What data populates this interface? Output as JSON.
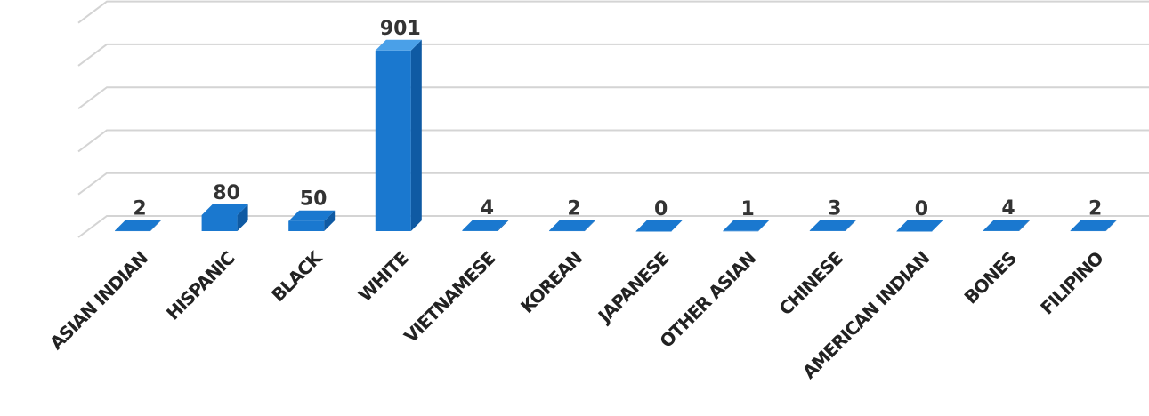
{
  "chart_data": {
    "type": "bar",
    "categories": [
      "ASIAN INDIAN",
      "HISPANIC",
      "BLACK",
      "WHITE",
      "VIETNAMESE",
      "KOREAN",
      "JAPANESE",
      "OTHER ASIAN",
      "CHINESE",
      "AMERICAN INDIAN",
      "BONES",
      "FILIPINO"
    ],
    "values": [
      2,
      80,
      50,
      901,
      4,
      2,
      0,
      1,
      3,
      0,
      4,
      2
    ],
    "data_labels": [
      "2",
      "80",
      "50",
      "901",
      "4",
      "2",
      "0",
      "1",
      "3",
      "0",
      "4",
      "2"
    ],
    "title": "",
    "xlabel": "",
    "ylabel": "",
    "ylim": [
      0,
      1000
    ],
    "grid": true,
    "legend": "none",
    "style": "3d-column",
    "colors": {
      "bar_front": "#1a78cf",
      "bar_top": "#4aa0e8",
      "bar_side": "#0f5aa3",
      "gridline": "#d4d4d4"
    }
  }
}
